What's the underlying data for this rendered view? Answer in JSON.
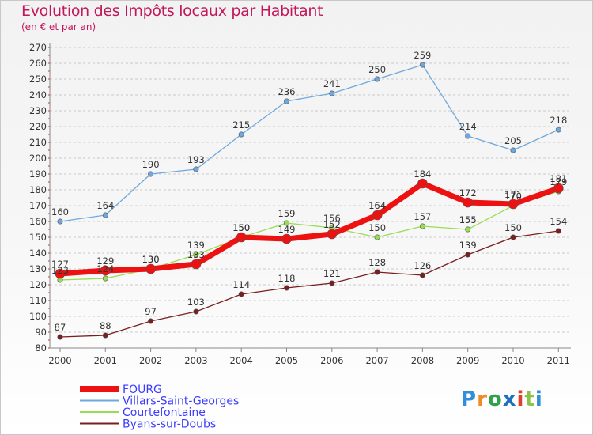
{
  "title": "Evolution des Impôts locaux par Habitant",
  "subtitle": "(en € et par an)",
  "logo_text": "Proxiti",
  "chart_data": {
    "type": "line",
    "title": "Evolution des Impôts locaux par Habitant",
    "subtitle": "(en € et par an)",
    "xlabel": "",
    "ylabel": "",
    "categories": [
      "2000",
      "2001",
      "2002",
      "2003",
      "2004",
      "2005",
      "2006",
      "2007",
      "2008",
      "2009",
      "2010",
      "2011"
    ],
    "ylim": [
      80,
      270
    ],
    "ytick_step": 10,
    "grid": "horizontal dashed",
    "legend": "bottom-left",
    "series": [
      {
        "name": "FOURG",
        "color": "#ee1111",
        "values": [
          127,
          129,
          130,
          133,
          150,
          149,
          152,
          164,
          184,
          172,
          171,
          181
        ],
        "labels": [
          "127",
          "129",
          "130",
          "133",
          "150",
          "149",
          "152",
          "164",
          "184",
          "172",
          "171",
          "181"
        ]
      },
      {
        "name": "Villars-Saint-Georges",
        "color": "#6fa8dc",
        "values": [
          160,
          164,
          190,
          193,
          215,
          236,
          241,
          250,
          259,
          214,
          205,
          218
        ],
        "labels": [
          "160",
          "164",
          "190",
          "193",
          "215",
          "236",
          "241",
          "250",
          "259",
          "214",
          "205",
          "218"
        ]
      },
      {
        "name": "Courtefontaine",
        "color": "#99dd55",
        "values": [
          123,
          124,
          130,
          139,
          150,
          159,
          156,
          150,
          157,
          155,
          170,
          179
        ],
        "labels": [
          "123",
          "124",
          "130",
          "139",
          "150",
          "159",
          "156",
          "150",
          "157",
          "155",
          "170",
          "179"
        ]
      },
      {
        "name": "Byans-sur-Doubs",
        "color": "#7a1f1f",
        "values": [
          87,
          88,
          97,
          103,
          114,
          118,
          121,
          128,
          126,
          139,
          150,
          154
        ],
        "labels": [
          "87",
          "88",
          "97",
          "103",
          "114",
          "118",
          "121",
          "128",
          "126",
          "139",
          "150",
          "154"
        ]
      }
    ]
  }
}
